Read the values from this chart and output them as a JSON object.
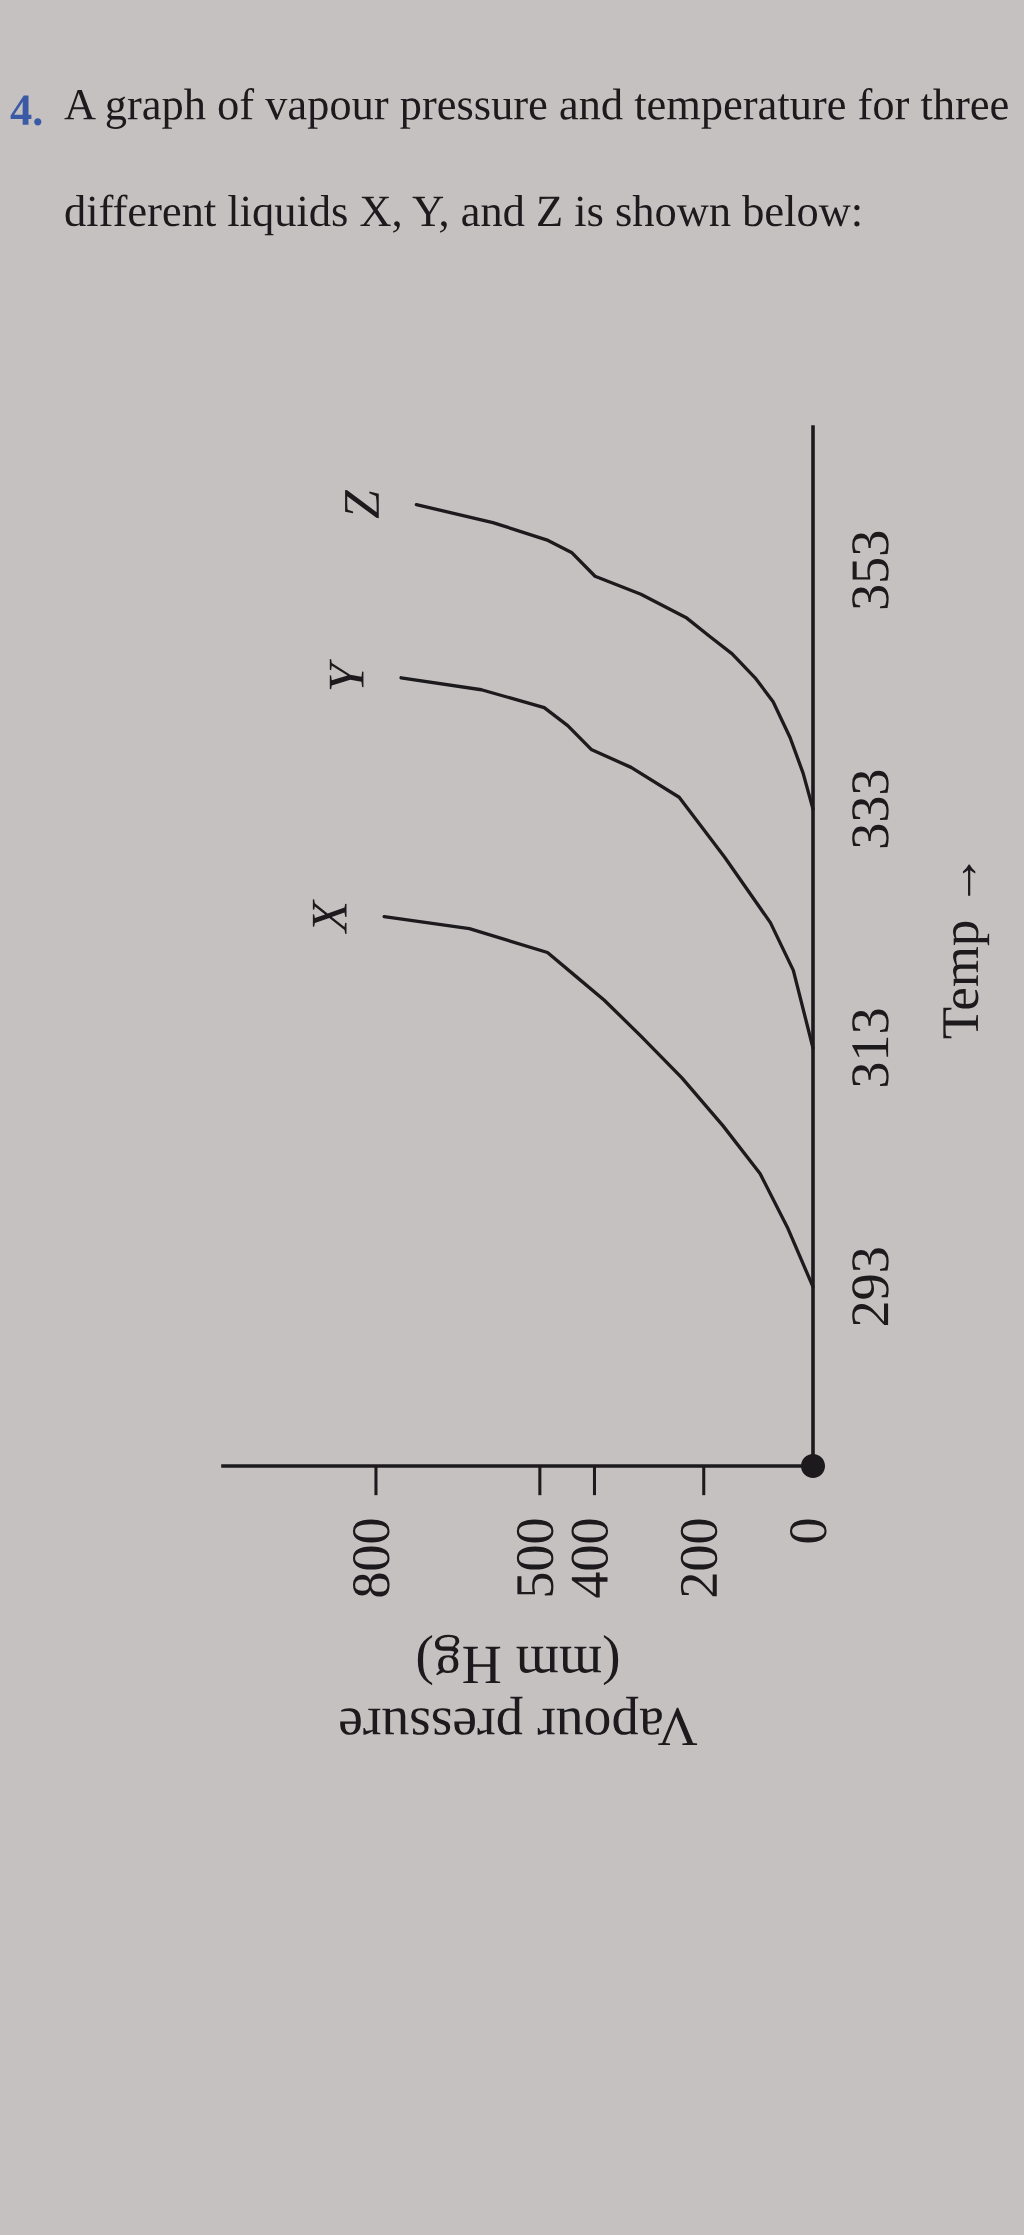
{
  "chart_data": {
    "type": "line",
    "title": "A graph of vapour pressure and temperature for three different liquids X, Y, and Z is shown below:",
    "annotations": [
      "4."
    ],
    "xlabel": "Vapour pressure\n(mm Hg)",
    "ylabel": "Temp →",
    "xlim": [
      1080,
      0
    ],
    "xticks": [
      0,
      200,
      400,
      500,
      800
    ],
    "ylim": [
      278,
      365
    ],
    "yticks": [
      293,
      313,
      333,
      353
    ],
    "marker": "none",
    "line_style": "solid",
    "series": [
      {
        "name": "X",
        "color": "#1c1a1c",
        "x": [
          0,
          47,
          97,
          165,
          240,
          315,
          382,
          434,
          486,
          629,
          785
        ],
        "values": [
          293,
          298,
          302.5,
          306.5,
          310.5,
          314,
          317,
          319,
          321,
          323,
          324
        ]
      },
      {
        "name": "Y",
        "color": "#1c1a1c",
        "x": [
          0,
          36,
          78,
          162,
          245,
          333,
          406,
          449,
          492,
          607,
          754
        ],
        "values": [
          313,
          319.5,
          323.5,
          329,
          334,
          336.5,
          338,
          340,
          341.5,
          343,
          344
        ]
      },
      {
        "name": "Z",
        "color": "#1c1a1c",
        "x": [
          0,
          18,
          42,
          73,
          106,
          148,
          190,
          231,
          315,
          399,
          442,
          485,
          586,
          726
        ],
        "values": [
          333,
          336,
          339,
          342,
          344,
          346,
          347.5,
          349,
          351,
          352.5,
          354.5,
          355.5,
          357,
          358.5
        ]
      },
      {
        "type": "scatter",
        "color": "#1c1a1c",
        "marker": "circle",
        "x": [
          0
        ],
        "values": [
          278
        ]
      }
    ]
  }
}
